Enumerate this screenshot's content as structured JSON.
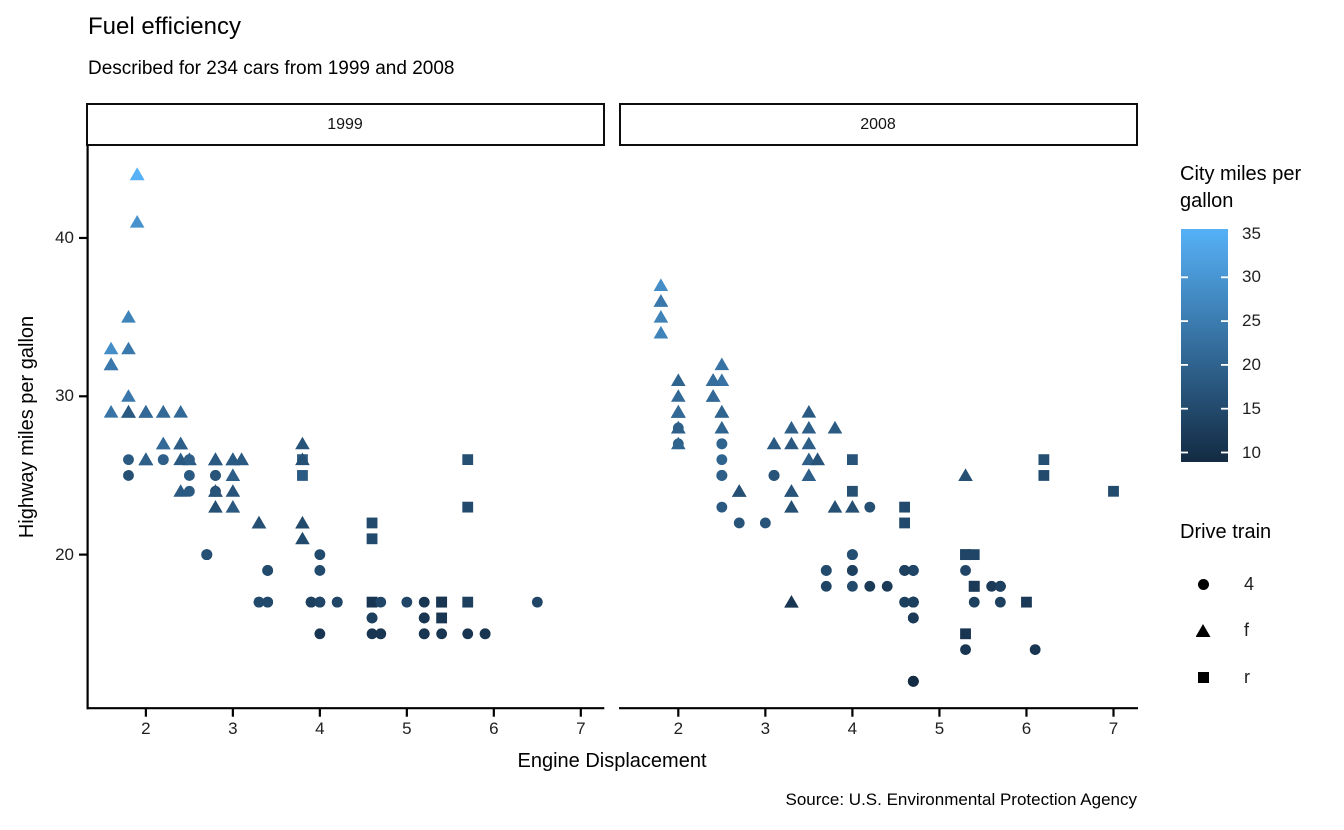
{
  "title": "Fuel efficiency",
  "subtitle": "Described for 234 cars from 1999 and 2008",
  "caption": "Source: U.S. Environmental Protection Agency",
  "chart_data": {
    "type": "scatter",
    "title": "Fuel efficiency",
    "subtitle": "Described for 234 cars from 1999 and 2008",
    "caption": "Source: U.S. Environmental Protection Agency",
    "xlabel": "Engine Displacement",
    "ylabel": "Highway miles per gallon",
    "facets": [
      {
        "label": "1999"
      },
      {
        "label": "2008"
      }
    ],
    "x_ticks": [
      2,
      3,
      4,
      5,
      6,
      7
    ],
    "y_ticks": [
      20,
      30,
      40
    ],
    "xlim": [
      1.33,
      7.27
    ],
    "ylim": [
      10.3,
      45.84
    ],
    "grid": false,
    "legend_position": "right",
    "color_legend": {
      "title": "City miles per gallon",
      "low_color": "#132B43",
      "high_color": "#56B1F7",
      "domain": [
        9,
        35
      ],
      "ticks": [
        35,
        30,
        25,
        20,
        15,
        10
      ]
    },
    "shape_legend": {
      "title": "Drive train",
      "entries": [
        {
          "drv": "4",
          "shape": "circle",
          "label": "4"
        },
        {
          "drv": "f",
          "shape": "triangle",
          "label": "f"
        },
        {
          "drv": "r",
          "shape": "square",
          "label": "r"
        }
      ]
    },
    "point_format": [
      "engine_displacement",
      "highway_mpg",
      "city_mpg",
      "drive_train"
    ],
    "points": {
      "1999": [
        [
          1.8,
          29,
          18,
          "f"
        ],
        [
          1.8,
          29,
          21,
          "f"
        ],
        [
          2.8,
          26,
          16,
          "f"
        ],
        [
          2.8,
          26,
          18,
          "f"
        ],
        [
          1.8,
          26,
          18,
          "4"
        ],
        [
          1.8,
          25,
          16,
          "4"
        ],
        [
          2.8,
          25,
          15,
          "4"
        ],
        [
          2.8,
          25,
          17,
          "4"
        ],
        [
          2.8,
          24,
          15,
          "4"
        ],
        [
          5.7,
          17,
          13,
          "r"
        ],
        [
          5.7,
          26,
          16,
          "r"
        ],
        [
          5.7,
          23,
          15,
          "r"
        ],
        [
          5.7,
          15,
          11,
          "4"
        ],
        [
          6.5,
          17,
          14,
          "4"
        ],
        [
          2.4,
          27,
          19,
          "f"
        ],
        [
          3.1,
          26,
          18,
          "f"
        ],
        [
          2.4,
          24,
          18,
          "f"
        ],
        [
          3.0,
          24,
          17,
          "f"
        ],
        [
          3.3,
          22,
          16,
          "f"
        ],
        [
          3.3,
          22,
          16,
          "f"
        ],
        [
          3.8,
          22,
          15,
          "f"
        ],
        [
          3.8,
          21,
          15,
          "f"
        ],
        [
          3.9,
          17,
          13,
          "4"
        ],
        [
          3.9,
          17,
          14,
          "4"
        ],
        [
          5.2,
          17,
          11,
          "4"
        ],
        [
          5.2,
          15,
          11,
          "4"
        ],
        [
          3.9,
          17,
          13,
          "4"
        ],
        [
          5.2,
          16,
          11,
          "4"
        ],
        [
          5.9,
          15,
          11,
          "4"
        ],
        [
          5.2,
          15,
          11,
          "4"
        ],
        [
          5.2,
          16,
          11,
          "4"
        ],
        [
          5.9,
          15,
          11,
          "4"
        ],
        [
          4.6,
          17,
          11,
          "r"
        ],
        [
          5.4,
          17,
          11,
          "r"
        ],
        [
          4.0,
          17,
          14,
          "4"
        ],
        [
          4.0,
          19,
          15,
          "4"
        ],
        [
          4.0,
          17,
          14,
          "4"
        ],
        [
          4.2,
          17,
          14,
          "4"
        ],
        [
          4.2,
          17,
          14,
          "4"
        ],
        [
          4.6,
          16,
          13,
          "4"
        ],
        [
          4.6,
          16,
          13,
          "4"
        ],
        [
          5.4,
          15,
          11,
          "4"
        ],
        [
          3.8,
          26,
          18,
          "r"
        ],
        [
          3.8,
          25,
          18,
          "r"
        ],
        [
          4.6,
          21,
          15,
          "r"
        ],
        [
          4.6,
          22,
          15,
          "r"
        ],
        [
          1.6,
          33,
          28,
          "f"
        ],
        [
          1.6,
          32,
          24,
          "f"
        ],
        [
          1.6,
          32,
          25,
          "f"
        ],
        [
          1.6,
          29,
          23,
          "f"
        ],
        [
          1.6,
          32,
          24,
          "f"
        ],
        [
          2.4,
          26,
          18,
          "f"
        ],
        [
          2.4,
          27,
          18,
          "f"
        ],
        [
          2.5,
          26,
          18,
          "f"
        ],
        [
          2.5,
          26,
          18,
          "f"
        ],
        [
          2.0,
          26,
          19,
          "f"
        ],
        [
          2.0,
          29,
          19,
          "f"
        ],
        [
          4.0,
          20,
          15,
          "4"
        ],
        [
          4.7,
          17,
          14,
          "4"
        ],
        [
          4.0,
          15,
          11,
          "4"
        ],
        [
          4.6,
          15,
          11,
          "4"
        ],
        [
          5.4,
          17,
          11,
          "r"
        ],
        [
          5.4,
          16,
          11,
          "r"
        ],
        [
          4.0,
          17,
          14,
          "4"
        ],
        [
          5.0,
          17,
          14,
          "4"
        ],
        [
          2.4,
          29,
          21,
          "f"
        ],
        [
          2.4,
          27,
          19,
          "f"
        ],
        [
          3.0,
          26,
          18,
          "f"
        ],
        [
          3.0,
          25,
          19,
          "f"
        ],
        [
          3.3,
          17,
          14,
          "4"
        ],
        [
          3.3,
          17,
          15,
          "4"
        ],
        [
          3.1,
          26,
          18,
          "f"
        ],
        [
          3.8,
          26,
          16,
          "f"
        ],
        [
          3.8,
          27,
          17,
          "f"
        ],
        [
          2.5,
          25,
          18,
          "4"
        ],
        [
          2.5,
          24,
          18,
          "4"
        ],
        [
          2.2,
          26,
          21,
          "4"
        ],
        [
          2.2,
          26,
          19,
          "4"
        ],
        [
          2.5,
          26,
          19,
          "4"
        ],
        [
          2.5,
          26,
          19,
          "4"
        ],
        [
          2.7,
          20,
          15,
          "4"
        ],
        [
          2.7,
          20,
          16,
          "4"
        ],
        [
          3.4,
          19,
          15,
          "4"
        ],
        [
          3.4,
          17,
          15,
          "4"
        ],
        [
          2.2,
          29,
          21,
          "f"
        ],
        [
          2.2,
          27,
          21,
          "f"
        ],
        [
          3.0,
          26,
          18,
          "f"
        ],
        [
          3.0,
          26,
          18,
          "f"
        ],
        [
          2.2,
          27,
          21,
          "f"
        ],
        [
          2.2,
          29,
          21,
          "f"
        ],
        [
          3.0,
          26,
          18,
          "f"
        ],
        [
          1.8,
          30,
          24,
          "f"
        ],
        [
          1.8,
          33,
          24,
          "f"
        ],
        [
          1.8,
          35,
          26,
          "f"
        ],
        [
          4.7,
          15,
          11,
          "4"
        ],
        [
          3.0,
          23,
          18,
          "f"
        ],
        [
          2.7,
          20,
          15,
          "4"
        ],
        [
          2.7,
          20,
          16,
          "4"
        ],
        [
          3.4,
          17,
          15,
          "4"
        ],
        [
          3.4,
          19,
          15,
          "4"
        ],
        [
          4.7,
          15,
          11,
          "4"
        ],
        [
          2.0,
          29,
          21,
          "f"
        ],
        [
          2.0,
          26,
          19,
          "f"
        ],
        [
          2.8,
          24,
          17,
          "f"
        ],
        [
          1.9,
          44,
          33,
          "f"
        ],
        [
          2.0,
          29,
          21,
          "f"
        ],
        [
          2.0,
          26,
          19,
          "f"
        ],
        [
          2.8,
          23,
          16,
          "f"
        ],
        [
          2.8,
          24,
          17,
          "f"
        ],
        [
          1.9,
          44,
          35,
          "f"
        ],
        [
          1.9,
          41,
          29,
          "f"
        ],
        [
          2.0,
          29,
          21,
          "f"
        ],
        [
          2.0,
          26,
          19,
          "f"
        ],
        [
          1.8,
          29,
          21,
          "f"
        ],
        [
          1.8,
          29,
          18,
          "f"
        ],
        [
          2.8,
          26,
          16,
          "f"
        ],
        [
          2.8,
          26,
          18,
          "f"
        ]
      ],
      "2008": [
        [
          2.0,
          31,
          20,
          "f"
        ],
        [
          2.0,
          30,
          21,
          "f"
        ],
        [
          3.1,
          27,
          18,
          "f"
        ],
        [
          2.0,
          28,
          20,
          "4"
        ],
        [
          2.0,
          27,
          19,
          "4"
        ],
        [
          3.1,
          25,
          17,
          "4"
        ],
        [
          3.1,
          25,
          15,
          "4"
        ],
        [
          3.1,
          25,
          17,
          "4"
        ],
        [
          4.2,
          23,
          16,
          "4"
        ],
        [
          5.3,
          20,
          14,
          "r"
        ],
        [
          5.3,
          15,
          11,
          "r"
        ],
        [
          5.3,
          20,
          14,
          "r"
        ],
        [
          6.0,
          17,
          12,
          "r"
        ],
        [
          6.2,
          26,
          16,
          "r"
        ],
        [
          6.2,
          25,
          15,
          "r"
        ],
        [
          7.0,
          24,
          15,
          "r"
        ],
        [
          5.3,
          19,
          14,
          "4"
        ],
        [
          5.3,
          14,
          11,
          "4"
        ],
        [
          2.4,
          30,
          22,
          "f"
        ],
        [
          3.5,
          29,
          18,
          "f"
        ],
        [
          3.6,
          26,
          17,
          "f"
        ],
        [
          3.3,
          24,
          17,
          "f"
        ],
        [
          3.3,
          24,
          17,
          "f"
        ],
        [
          3.3,
          17,
          11,
          "f"
        ],
        [
          3.8,
          23,
          16,
          "f"
        ],
        [
          4.0,
          23,
          16,
          "f"
        ],
        [
          3.7,
          19,
          15,
          "4"
        ],
        [
          3.7,
          18,
          14,
          "4"
        ],
        [
          4.7,
          19,
          14,
          "4"
        ],
        [
          4.7,
          19,
          14,
          "4"
        ],
        [
          4.7,
          12,
          9,
          "4"
        ],
        [
          4.7,
          17,
          13,
          "4"
        ],
        [
          4.7,
          12,
          9,
          "4"
        ],
        [
          4.7,
          17,
          13,
          "4"
        ],
        [
          5.7,
          18,
          13,
          "4"
        ],
        [
          4.7,
          16,
          12,
          "4"
        ],
        [
          4.7,
          12,
          9,
          "4"
        ],
        [
          4.7,
          17,
          13,
          "4"
        ],
        [
          4.7,
          16,
          12,
          "4"
        ],
        [
          5.7,
          17,
          13,
          "4"
        ],
        [
          5.4,
          18,
          12,
          "r"
        ],
        [
          4.0,
          19,
          13,
          "4"
        ],
        [
          4.6,
          19,
          13,
          "4"
        ],
        [
          4.6,
          17,
          13,
          "4"
        ],
        [
          5.4,
          17,
          13,
          "4"
        ],
        [
          4.0,
          26,
          17,
          "r"
        ],
        [
          4.0,
          24,
          16,
          "r"
        ],
        [
          4.6,
          23,
          15,
          "r"
        ],
        [
          4.6,
          22,
          15,
          "r"
        ],
        [
          5.4,
          20,
          14,
          "r"
        ],
        [
          1.8,
          34,
          26,
          "f"
        ],
        [
          1.8,
          36,
          25,
          "f"
        ],
        [
          1.8,
          36,
          24,
          "f"
        ],
        [
          2.0,
          29,
          21,
          "f"
        ],
        [
          2.4,
          30,
          21,
          "f"
        ],
        [
          2.4,
          31,
          21,
          "f"
        ],
        [
          3.3,
          28,
          19,
          "f"
        ],
        [
          2.0,
          28,
          20,
          "f"
        ],
        [
          2.0,
          27,
          20,
          "f"
        ],
        [
          2.7,
          24,
          17,
          "f"
        ],
        [
          2.7,
          24,
          16,
          "f"
        ],
        [
          3.0,
          22,
          17,
          "4"
        ],
        [
          3.7,
          19,
          15,
          "4"
        ],
        [
          4.7,
          12,
          9,
          "4"
        ],
        [
          4.7,
          19,
          14,
          "4"
        ],
        [
          5.7,
          18,
          13,
          "4"
        ],
        [
          6.1,
          14,
          11,
          "4"
        ],
        [
          4.2,
          18,
          12,
          "4"
        ],
        [
          4.4,
          18,
          12,
          "4"
        ],
        [
          5.4,
          18,
          12,
          "r"
        ],
        [
          4.0,
          19,
          13,
          "4"
        ],
        [
          4.6,
          19,
          13,
          "4"
        ],
        [
          2.5,
          31,
          23,
          "f"
        ],
        [
          2.5,
          32,
          23,
          "f"
        ],
        [
          3.5,
          27,
          19,
          "f"
        ],
        [
          3.5,
          26,
          19,
          "f"
        ],
        [
          3.5,
          25,
          19,
          "f"
        ],
        [
          4.0,
          20,
          14,
          "4"
        ],
        [
          5.6,
          18,
          12,
          "4"
        ],
        [
          3.8,
          28,
          18,
          "f"
        ],
        [
          5.3,
          25,
          16,
          "f"
        ],
        [
          2.5,
          27,
          20,
          "4"
        ],
        [
          2.5,
          25,
          19,
          "4"
        ],
        [
          2.5,
          26,
          20,
          "4"
        ],
        [
          2.5,
          23,
          18,
          "4"
        ],
        [
          2.5,
          25,
          20,
          "4"
        ],
        [
          2.5,
          25,
          19,
          "4"
        ],
        [
          2.5,
          27,
          20,
          "4"
        ],
        [
          4.0,
          20,
          16,
          "4"
        ],
        [
          4.7,
          17,
          14,
          "4"
        ],
        [
          2.4,
          31,
          21,
          "f"
        ],
        [
          2.4,
          31,
          21,
          "f"
        ],
        [
          3.5,
          28,
          19,
          "f"
        ],
        [
          2.4,
          31,
          21,
          "f"
        ],
        [
          2.4,
          31,
          22,
          "f"
        ],
        [
          3.3,
          27,
          18,
          "f"
        ],
        [
          1.8,
          37,
          28,
          "f"
        ],
        [
          1.8,
          35,
          26,
          "f"
        ],
        [
          5.7,
          18,
          13,
          "4"
        ],
        [
          3.3,
          23,
          16,
          "f"
        ],
        [
          2.7,
          22,
          17,
          "4"
        ],
        [
          4.0,
          18,
          15,
          "4"
        ],
        [
          4.0,
          20,
          16,
          "4"
        ],
        [
          4.7,
          17,
          13,
          "4"
        ],
        [
          4.7,
          17,
          13,
          "4"
        ],
        [
          5.7,
          18,
          13,
          "4"
        ],
        [
          2.0,
          29,
          21,
          "f"
        ],
        [
          2.0,
          29,
          22,
          "f"
        ],
        [
          2.0,
          29,
          22,
          "f"
        ],
        [
          2.0,
          29,
          21,
          "f"
        ],
        [
          2.5,
          29,
          21,
          "f"
        ],
        [
          2.5,
          29,
          21,
          "f"
        ],
        [
          2.5,
          28,
          20,
          "f"
        ],
        [
          2.5,
          29,
          20,
          "f"
        ],
        [
          2.0,
          28,
          19,
          "f"
        ],
        [
          2.0,
          29,
          21,
          "f"
        ],
        [
          3.6,
          26,
          17,
          "f"
        ]
      ]
    }
  }
}
